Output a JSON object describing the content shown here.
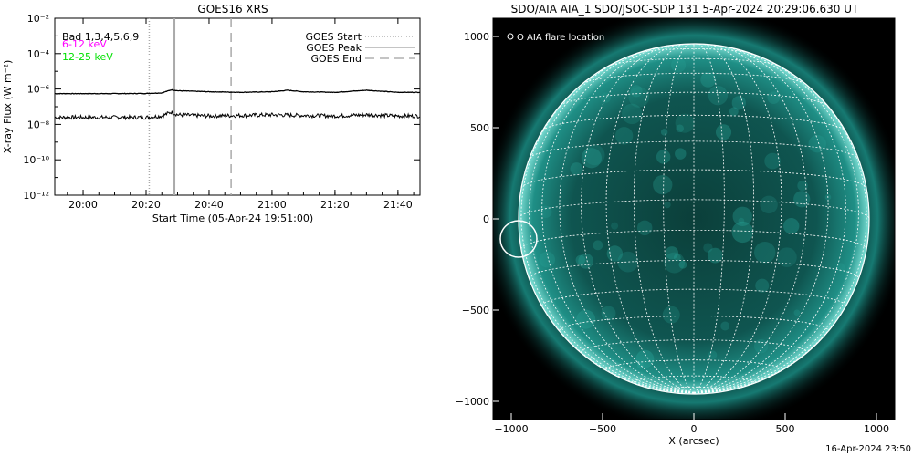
{
  "stamp": "16-Apr-2024 23:50",
  "chart_data": [
    {
      "type": "line",
      "title": "GOES16 XRS",
      "xlabel": "Start Time (05-Apr-24 19:51:00)",
      "ylabel": "X-ray Flux (W m⁻²)",
      "yscale": "log",
      "xlim": [
        "19:51",
        "21:47"
      ],
      "ylim": [
        1e-12,
        0.01
      ],
      "x_ticks": [
        "20:00",
        "20:20",
        "20:40",
        "21:00",
        "21:20",
        "21:40"
      ],
      "y_ticks": [
        "10⁻²",
        "10⁻⁴",
        "10⁻⁶",
        "10⁻⁸",
        "10⁻¹⁰",
        "10⁻¹²"
      ],
      "annotations": [
        "Bad 1,3,4,5,6,9"
      ],
      "colors": {
        "channel_low": "#ff00ff",
        "channel_high": "#00e000",
        "lines": "#000000",
        "markers": "#aaaaaa"
      },
      "series": [
        {
          "name": "6-12 keV",
          "x": [
            "19:51",
            "20:00",
            "20:10",
            "20:20",
            "20:25",
            "20:28",
            "20:30",
            "20:40",
            "20:50",
            "21:00",
            "21:05",
            "21:10",
            "21:20",
            "21:30",
            "21:40",
            "21:47"
          ],
          "values": [
            5.5e-07,
            5.5e-07,
            5.5e-07,
            5.6e-07,
            6e-07,
            9e-07,
            8e-07,
            7e-07,
            6.5e-07,
            7e-07,
            8.5e-07,
            7e-07,
            6.5e-07,
            8.5e-07,
            6.5e-07,
            6.5e-07
          ]
        },
        {
          "name": "12-25 keV",
          "x": [
            "19:51",
            "20:00",
            "20:10",
            "20:20",
            "20:25",
            "20:28",
            "20:30",
            "20:40",
            "20:50",
            "21:00",
            "21:10",
            "21:20",
            "21:30",
            "21:40",
            "21:47"
          ],
          "values": [
            2.5e-08,
            2.5e-08,
            2.5e-08,
            2.5e-08,
            3e-08,
            5e-08,
            3.5e-08,
            3e-08,
            3.2e-08,
            3.5e-08,
            3.2e-08,
            3e-08,
            3.5e-08,
            3e-08,
            3e-08
          ]
        }
      ],
      "markers": [
        {
          "label": "GOES Start",
          "time": "20:21",
          "style": "dotted"
        },
        {
          "label": "GOES Peak",
          "time": "20:29",
          "style": "solid"
        },
        {
          "label": "GOES End",
          "time": "20:47",
          "style": "dashed"
        }
      ]
    },
    {
      "type": "scatter",
      "title": "SDO/AIA AIA_1 SDO/JSOC-SDP 131  5-Apr-2024 20:29:06.630 UT",
      "xlabel": "X (arcsec)",
      "ylabel": "",
      "xlim": [
        -1100,
        1100
      ],
      "ylim": [
        -1100,
        1100
      ],
      "x_ticks": [
        -1000,
        -500,
        0,
        500,
        1000
      ],
      "y_ticks": [
        1000,
        500,
        0,
        -500,
        -1000
      ],
      "legend": "O AIA flare location",
      "legend_position": "top-left",
      "grid": true,
      "colors": {
        "sun": "#1f8f86",
        "grid": "#ffffff",
        "background": "#000000"
      },
      "points": [
        {
          "name": "AIA flare location",
          "x": -960,
          "y": -110
        }
      ]
    }
  ]
}
